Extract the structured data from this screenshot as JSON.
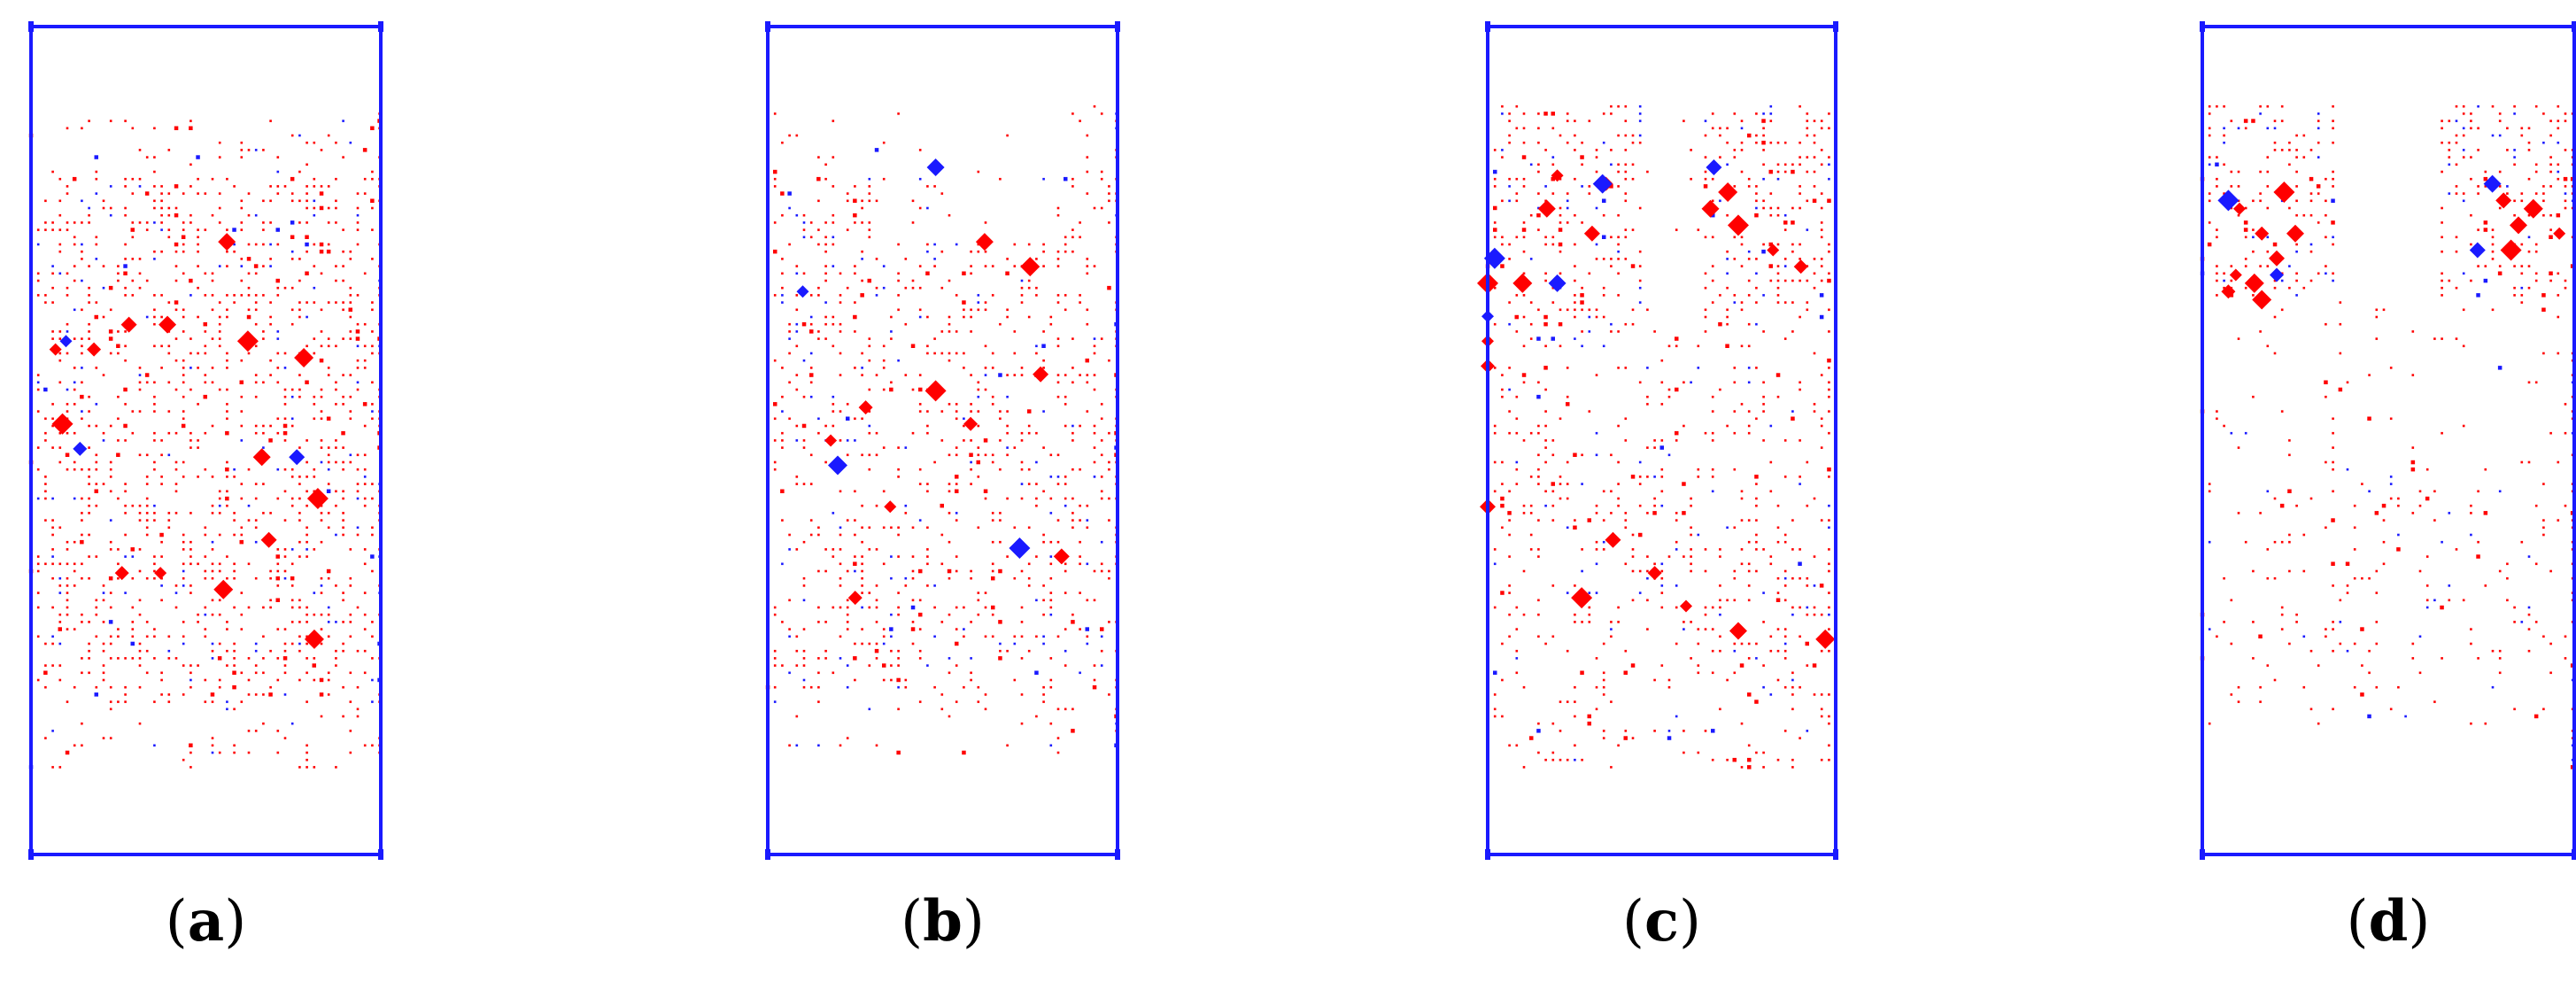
{
  "figure": {
    "colors": {
      "frame": "#1a1aff",
      "tension_crack": "#ff0000",
      "shear_crack": "#1a1aff",
      "caption_text": "#000000"
    },
    "panels": [
      {
        "label": "a",
        "caption_open": "(",
        "caption_close": ")"
      },
      {
        "label": "b",
        "caption_open": "(",
        "caption_close": ")"
      },
      {
        "label": "c",
        "caption_open": "(",
        "caption_close": ")"
      },
      {
        "label": "d",
        "caption_open": "(",
        "caption_close": ")"
      }
    ]
  }
}
